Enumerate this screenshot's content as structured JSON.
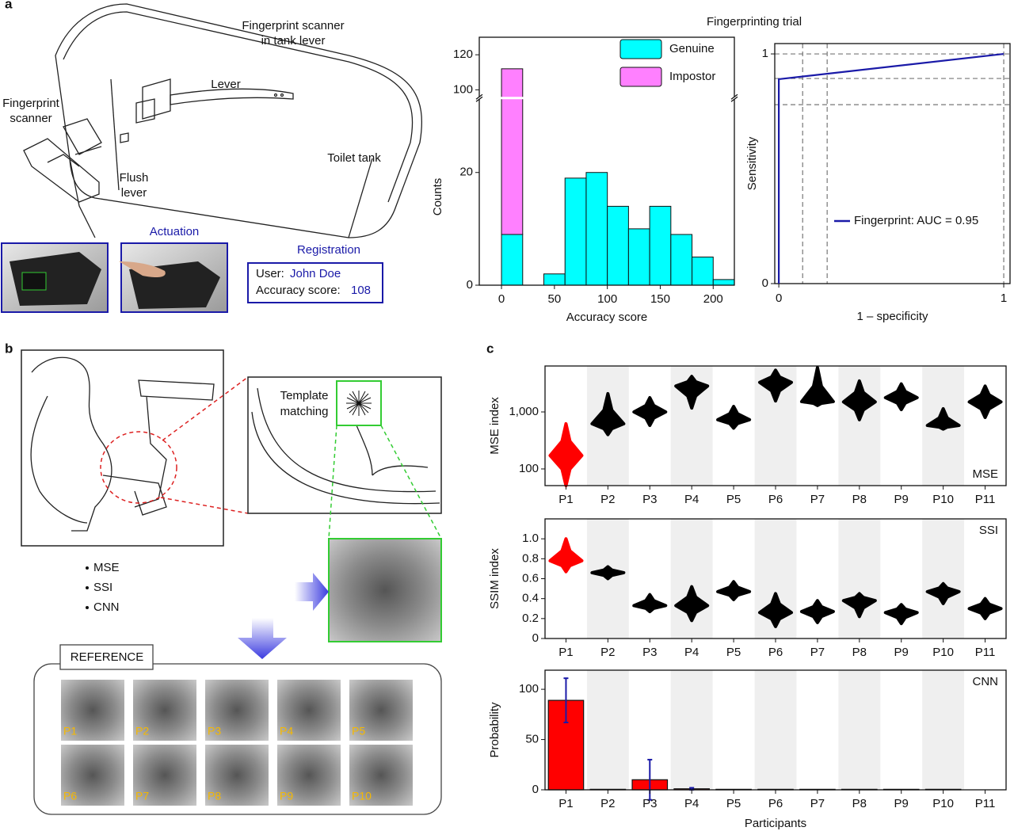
{
  "panel_labels": [
    "a",
    "b",
    "c"
  ],
  "trial_title": "Fingerprinting trial",
  "illustration_a": {
    "tank_lever": [
      "Fingerprint scanner",
      "in tank lever"
    ],
    "lever": "Lever",
    "scanner": [
      "Fingerprint",
      "scanner"
    ],
    "flush": [
      "Flush",
      "lever"
    ],
    "tank": "Toilet tank",
    "actuation": "Actuation",
    "registration": "Registration",
    "user_label": "User:",
    "user_name": "John Doe",
    "score_label": "Accuracy score:",
    "score_value": "108"
  },
  "illustration_b": {
    "template": [
      "Template",
      "matching"
    ],
    "methods": [
      "MSE",
      "SSI",
      "CNN"
    ],
    "reference": "REFERENCE",
    "thumbnails": [
      "P1",
      "P2",
      "P3",
      "P4",
      "P5",
      "P6",
      "P7",
      "P8",
      "P9",
      "P10"
    ]
  },
  "chart_data": [
    {
      "type": "histogram",
      "ylabel": "Counts",
      "xlabel": "Accuracy score",
      "bins": [
        0,
        20,
        40,
        60,
        80,
        100,
        120,
        140,
        160,
        180,
        200,
        220
      ],
      "series": [
        {
          "name": "Genuine",
          "color": "#00ffff",
          "values": [
            9,
            0,
            2,
            19,
            20,
            14,
            10,
            14,
            9,
            5,
            1
          ]
        },
        {
          "name": "Impostor",
          "color": "#ff80ff",
          "values": [
            103,
            0,
            0,
            0,
            0,
            0,
            0,
            0,
            0,
            0,
            0
          ]
        }
      ],
      "xlim": [
        -21,
        220
      ],
      "xticks": [
        0,
        50,
        100,
        150,
        200
      ],
      "ylim": [
        0,
        130
      ],
      "axis_break": [
        33,
        96
      ],
      "yticks": [
        0,
        20,
        100,
        120
      ],
      "legend": "upper right"
    },
    {
      "type": "line",
      "ylabel": "Sensitivity",
      "xlabel": "1 – specificity",
      "series": [
        {
          "name": "Fingerprint: AUC = 0.95",
          "color": "#1a1aa8",
          "x": [
            0,
            0,
            1
          ],
          "y": [
            0,
            0.89,
            1
          ]
        }
      ],
      "reference_lines": {
        "x": [
          0.106,
          0.215,
          1
        ],
        "y": [
          0.779,
          0.893,
          1
        ]
      },
      "xlim": [
        -0.018,
        1.028
      ],
      "xticks": [
        0,
        1
      ],
      "ylim": [
        0,
        1.045
      ],
      "yticks": [
        0,
        1
      ],
      "legend": "lower right"
    },
    {
      "type": "swarm",
      "ylabel": "MSE index",
      "corner_label": "MSE",
      "log_scale": true,
      "categories": [
        "P1",
        "P2",
        "P3",
        "P4",
        "P5",
        "P6",
        "P7",
        "P8",
        "P9",
        "P10",
        "P11"
      ],
      "values": [
        172,
        620,
        1000,
        2850,
        730,
        3300,
        1520,
        1500,
        1780,
        580,
        1500
      ],
      "min": [
        51,
        400,
        580,
        1170,
        520,
        1560,
        1300,
        730,
        1100,
        500,
        800
      ],
      "max": [
        620,
        2090,
        1780,
        4200,
        1250,
        5400,
        6000,
        3500,
        3100,
        1140,
        2850
      ],
      "colors": [
        "#ff0000",
        "#000000",
        "#000000",
        "#000000",
        "#000000",
        "#000000",
        "#000000",
        "#000000",
        "#000000",
        "#000000",
        "#000000"
      ],
      "band_shading": true,
      "ylim": [
        51,
        6400
      ],
      "yticks": [
        100,
        {
          "value": 1000,
          "label": "1,000"
        }
      ]
    },
    {
      "type": "swarm",
      "ylabel": "SSIM index",
      "corner_label": "SSI",
      "categories": [
        "P1",
        "P2",
        "P3",
        "P4",
        "P5",
        "P6",
        "P7",
        "P8",
        "P9",
        "P10",
        "P11"
      ],
      "values": [
        0.78,
        0.66,
        0.33,
        0.33,
        0.47,
        0.26,
        0.27,
        0.38,
        0.26,
        0.47,
        0.3
      ],
      "min": [
        0.67,
        0.6,
        0.27,
        0.18,
        0.39,
        0.12,
        0.16,
        0.22,
        0.15,
        0.35,
        0.2
      ],
      "max": [
        1.0,
        0.72,
        0.44,
        0.52,
        0.57,
        0.45,
        0.38,
        0.45,
        0.34,
        0.55,
        0.4
      ],
      "colors": [
        "#ff0000",
        "#000000",
        "#000000",
        "#000000",
        "#000000",
        "#000000",
        "#000000",
        "#000000",
        "#000000",
        "#000000",
        "#000000"
      ],
      "band_shading": true,
      "ylim": [
        0,
        1.2
      ],
      "yticks": [
        0,
        0.2,
        0.4,
        0.6,
        0.8,
        {
          "value": 1,
          "label": "1.0"
        }
      ]
    },
    {
      "type": "bar",
      "ylabel": "Probability",
      "xlabel": "Participants",
      "corner_label": "CNN",
      "categories": [
        "P1",
        "P2",
        "P3",
        "P4",
        "P5",
        "P6",
        "P7",
        "P8",
        "P9",
        "P10",
        "P11"
      ],
      "values": [
        89,
        0.5,
        10,
        1,
        0.5,
        0.5,
        0.5,
        0.5,
        0.5,
        0.5,
        0
      ],
      "errors": [
        22,
        0,
        20,
        1,
        0,
        0,
        0,
        0,
        0,
        0,
        0
      ],
      "color": "#ff0000",
      "error_color": "#1a1aa8",
      "band_shading": true,
      "ylim": [
        0,
        119
      ],
      "yticks": [
        0,
        50,
        100
      ]
    }
  ]
}
